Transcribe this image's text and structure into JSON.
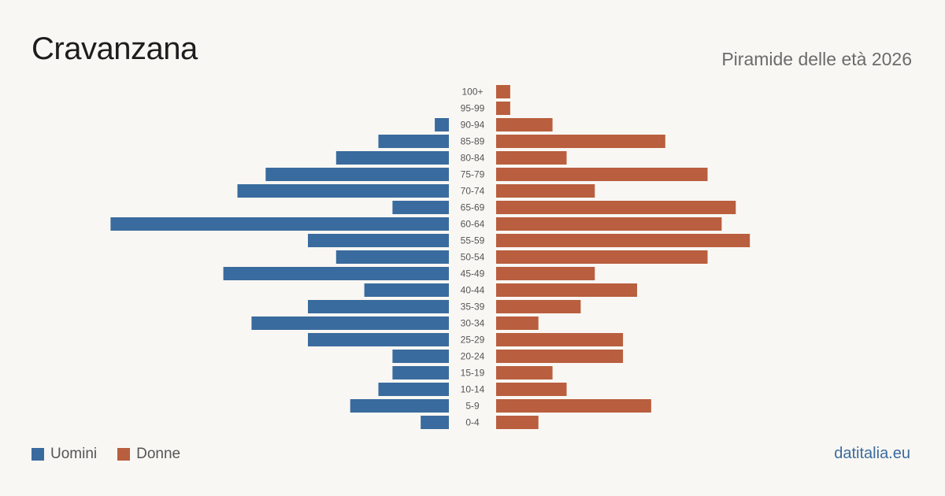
{
  "header": {
    "title": "Cravanzana",
    "subtitle": "Piramide delle età 2026"
  },
  "legend": {
    "men_label": "Uomini",
    "women_label": "Donne"
  },
  "footer": {
    "source": "datitalia.eu"
  },
  "colors": {
    "men": "#3a6b9e",
    "women": "#b95e3e",
    "background": "#f9f7f3",
    "label": "#555555"
  },
  "chart_data": {
    "type": "bar",
    "orientation": "horizontal-pyramid",
    "categories": [
      "100+",
      "95-99",
      "90-94",
      "85-89",
      "80-84",
      "75-79",
      "70-74",
      "65-69",
      "60-64",
      "55-59",
      "50-54",
      "45-49",
      "40-44",
      "35-39",
      "30-34",
      "25-29",
      "20-24",
      "15-19",
      "10-14",
      "5-9",
      "0-4"
    ],
    "series": [
      {
        "name": "Uomini",
        "values": [
          0,
          0,
          1,
          5,
          8,
          13,
          15,
          4,
          24,
          10,
          8,
          16,
          6,
          10,
          14,
          10,
          4,
          4,
          5,
          7,
          2
        ]
      },
      {
        "name": "Donne",
        "values": [
          1,
          1,
          4,
          12,
          5,
          15,
          7,
          17,
          16,
          18,
          15,
          7,
          10,
          6,
          3,
          9,
          9,
          4,
          5,
          11,
          3
        ]
      }
    ],
    "xlim": [
      0,
      24
    ]
  }
}
